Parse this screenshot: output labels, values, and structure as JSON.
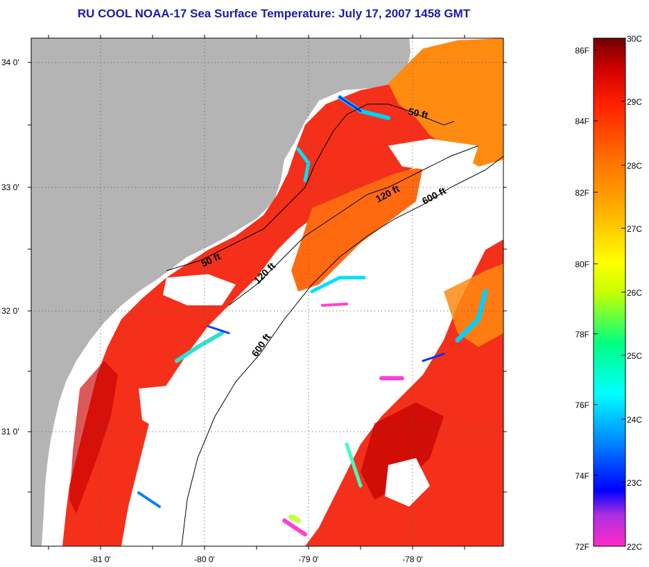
{
  "title": "RU COOL  NOAA-17  Sea Surface Temperature:  July 17, 2007 1458 GMT",
  "lat_labels": [
    "34 0'",
    "33 0'",
    "32 0'",
    "31 0'"
  ],
  "lon_labels": [
    "-81 0'",
    "-80 0'",
    "-79 0'",
    "-78 0'"
  ],
  "depth_labels": {
    "shallow_north": "50 ft",
    "shallow_south": "50 ft",
    "mid_north": "120 ft",
    "mid_south": "120 ft",
    "deep_north": "600 ft",
    "deep_south": "600 ft"
  },
  "colorbar": {
    "fahrenheit_labels": [
      "86F",
      "84F",
      "82F",
      "80F",
      "78F",
      "76F",
      "74F",
      "72F"
    ],
    "celsius_labels": [
      "30C",
      "29C",
      "28C",
      "27C",
      "26C",
      "25C",
      "24C",
      "23C",
      "22C"
    ],
    "colors": [
      "#ff2ac8",
      "#a020f0",
      "#0000ff",
      "#0090ff",
      "#00ffff",
      "#00ff80",
      "#c8ff00",
      "#ffff00",
      "#ffb000",
      "#ff7000",
      "#ff2000",
      "#e00000",
      "#800000"
    ]
  },
  "colors": {
    "land": "#b4b4b4",
    "no_data": "#ffffff",
    "title": "#1a1aa8"
  }
}
